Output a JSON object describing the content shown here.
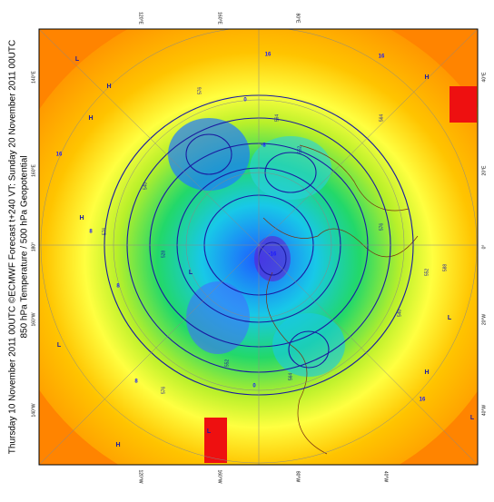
{
  "header": {
    "title_line1": "Thursday 10 November 2011 00UTC ©ECMWF Forecast t+240 VT: Sunday 20 November 2011 00UTC",
    "title_line2": "850 hPa Temperature / 500 hPa Geopotential"
  },
  "frame_labels": {
    "top": [
      "120°E",
      "160°E",
      "80°E"
    ],
    "bottom": [
      "120°W",
      "160°W",
      "80°W",
      "40°W"
    ],
    "left": [
      "140°E",
      "160°E",
      "180°",
      "160°W",
      "140°W"
    ],
    "right": [
      "40°E",
      "20°E",
      "0°",
      "20°W",
      "40°W"
    ]
  },
  "contour_labels": [
    "576",
    "564",
    "552",
    "540",
    "528",
    "576",
    "564",
    "552",
    "540",
    "576",
    "588",
    "576",
    "564",
    "552"
  ],
  "temperature_labels": [
    "16",
    "16",
    "16",
    "8",
    "8",
    "0",
    "-8",
    "-16",
    "8",
    "0",
    "16"
  ],
  "pressure_centers": [
    "H",
    "L",
    "H",
    "L",
    "H",
    "H",
    "L",
    "L",
    "H",
    "L",
    "H",
    "L"
  ]
}
